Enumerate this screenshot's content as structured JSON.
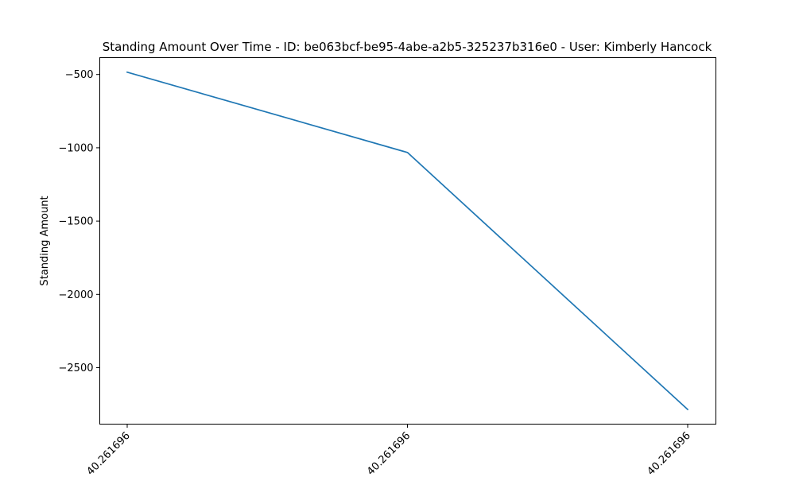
{
  "chart_data": {
    "type": "line",
    "title": "Standing Amount Over Time - ID: be063bcf-be95-4abe-a2b5-325237b316e0 - User: Kimberly Hancock",
    "xlabel": "",
    "ylabel": "Standing Amount",
    "x_tick_labels": [
      "40.261696",
      "40.261696",
      "40.261696"
    ],
    "y_ticks": [
      -500,
      -1000,
      -1500,
      -2000,
      -2500
    ],
    "y_tick_labels": [
      "−500",
      "−1000",
      "−1500",
      "−2000",
      "−2500"
    ],
    "ylim": [
      -2885,
      -385
    ],
    "grid": false,
    "series": [
      {
        "values": [
          -484,
          -1032,
          -2785
        ],
        "color": "#1f77b4"
      }
    ]
  }
}
